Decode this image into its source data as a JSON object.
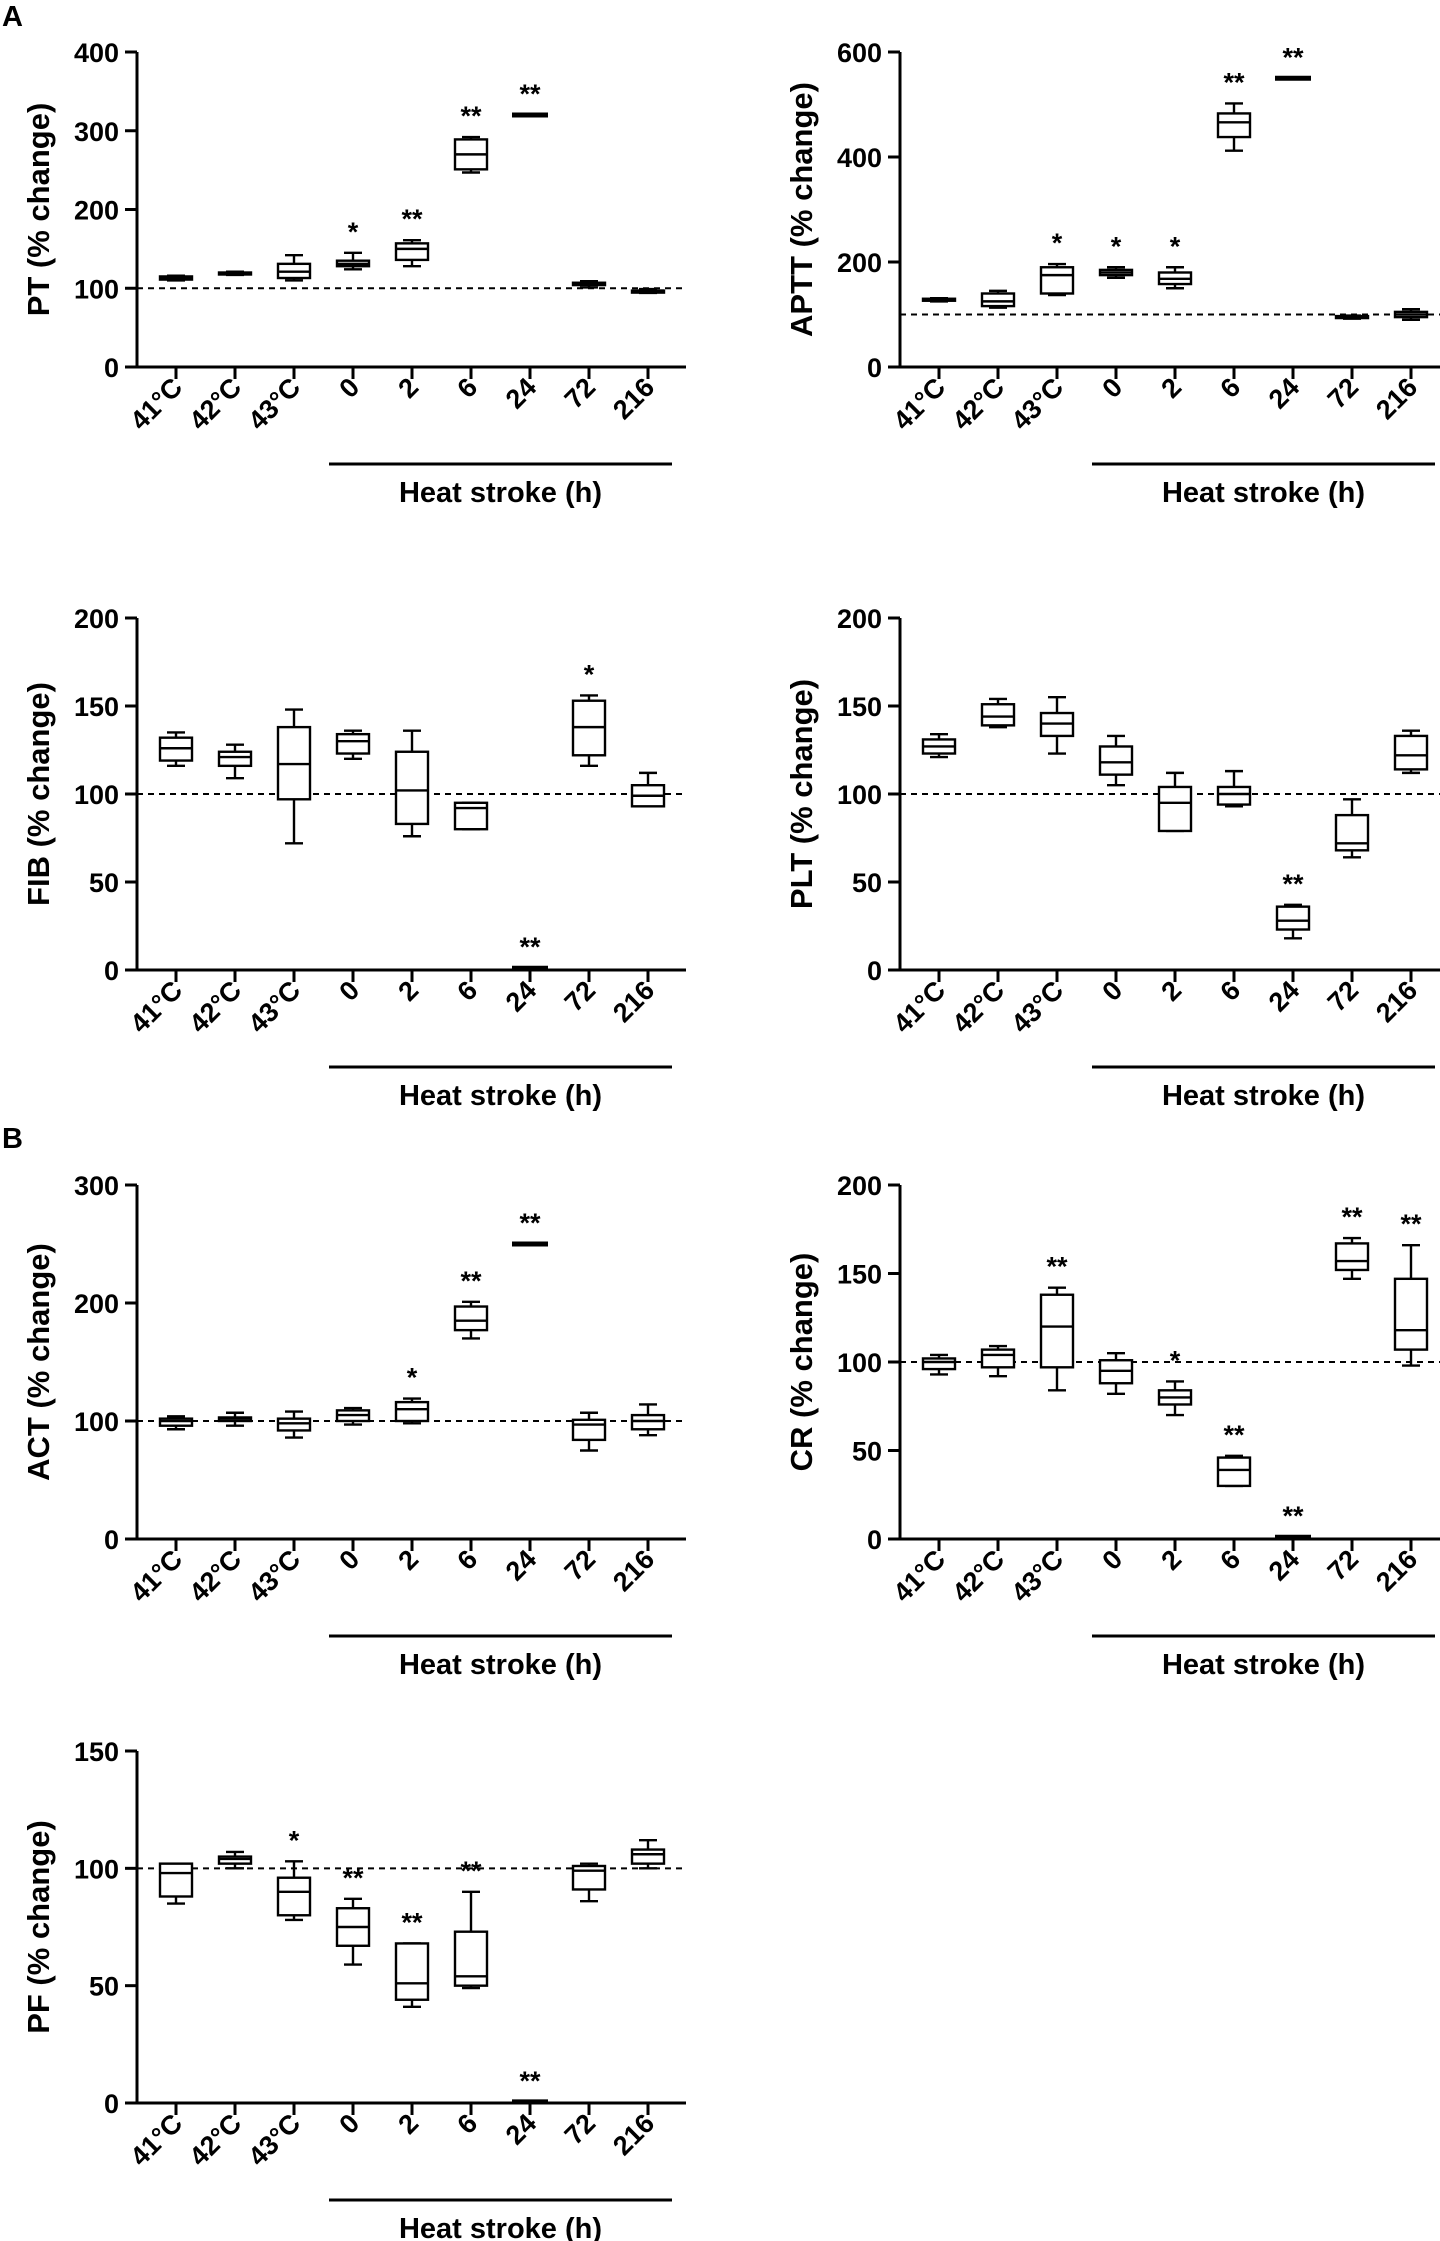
{
  "panels": [
    {
      "letter": "A"
    },
    {
      "letter": "B"
    }
  ],
  "chart_data": [
    {
      "type": "box",
      "panel": "A",
      "ylabel": "PT (% change)",
      "group_label": "Heat stroke (h)",
      "ylim": [
        0,
        400
      ],
      "yticks": [
        0,
        100,
        200,
        300,
        400
      ],
      "reference_line": 100,
      "categories": [
        "41°C",
        "42°C",
        "43°C",
        "0",
        "2",
        "6",
        "24",
        "72",
        "216"
      ],
      "boxes": [
        {
          "min": 110,
          "q1": 111,
          "median": 113,
          "q3": 115,
          "max": 116,
          "sig": ""
        },
        {
          "min": 117,
          "q1": 118,
          "median": 119,
          "q3": 120,
          "max": 121,
          "sig": ""
        },
        {
          "min": 110,
          "q1": 113,
          "median": 121,
          "q3": 131,
          "max": 142,
          "sig": ""
        },
        {
          "min": 124,
          "q1": 128,
          "median": 131,
          "q3": 135,
          "max": 145,
          "sig": "*"
        },
        {
          "min": 128,
          "q1": 136,
          "median": 150,
          "q3": 157,
          "max": 161,
          "sig": "**"
        },
        {
          "min": 247,
          "q1": 251,
          "median": 270,
          "q3": 289,
          "max": 292,
          "sig": "**"
        },
        {
          "min": 320,
          "q1": 320,
          "median": 320,
          "q3": 320,
          "max": 320,
          "sig": "**"
        },
        {
          "min": 101,
          "q1": 104,
          "median": 106,
          "q3": 107,
          "max": 109,
          "sig": ""
        },
        {
          "min": 94,
          "q1": 95,
          "median": 97,
          "q3": 97,
          "max": 99,
          "sig": ""
        }
      ]
    },
    {
      "type": "box",
      "panel": "A",
      "ylabel": "APTT (% change)",
      "group_label": "Heat stroke (h)",
      "ylim": [
        0,
        600
      ],
      "yticks": [
        0,
        200,
        400,
        600
      ],
      "reference_line": 100,
      "categories": [
        "41°C",
        "42°C",
        "43°C",
        "0",
        "2",
        "6",
        "24",
        "72",
        "216"
      ],
      "boxes": [
        {
          "min": 125,
          "q1": 127,
          "median": 128,
          "q3": 130,
          "max": 131,
          "sig": ""
        },
        {
          "min": 113,
          "q1": 116,
          "median": 125,
          "q3": 140,
          "max": 145,
          "sig": ""
        },
        {
          "min": 137,
          "q1": 140,
          "median": 175,
          "q3": 190,
          "max": 196,
          "sig": "*"
        },
        {
          "min": 170,
          "q1": 175,
          "median": 180,
          "q3": 185,
          "max": 190,
          "sig": "*"
        },
        {
          "min": 150,
          "q1": 158,
          "median": 168,
          "q3": 180,
          "max": 190,
          "sig": "*"
        },
        {
          "min": 412,
          "q1": 438,
          "median": 466,
          "q3": 483,
          "max": 502,
          "sig": "**"
        },
        {
          "min": 550,
          "q1": 550,
          "median": 550,
          "q3": 550,
          "max": 550,
          "sig": "**"
        },
        {
          "min": 92,
          "q1": 94,
          "median": 95,
          "q3": 97,
          "max": 98,
          "sig": ""
        },
        {
          "min": 90,
          "q1": 95,
          "median": 100,
          "q3": 105,
          "max": 110,
          "sig": ""
        }
      ]
    },
    {
      "type": "box",
      "panel": "A",
      "ylabel": "FIB (% change)",
      "group_label": "Heat stroke (h)",
      "ylim": [
        0,
        200
      ],
      "yticks": [
        0,
        50,
        100,
        150,
        200
      ],
      "reference_line": 100,
      "categories": [
        "41°C",
        "42°C",
        "43°C",
        "0",
        "2",
        "6",
        "24",
        "72",
        "216"
      ],
      "boxes": [
        {
          "min": 116,
          "q1": 119,
          "median": 126,
          "q3": 132,
          "max": 135,
          "sig": ""
        },
        {
          "min": 109,
          "q1": 116,
          "median": 121,
          "q3": 124,
          "max": 128,
          "sig": ""
        },
        {
          "min": 72,
          "q1": 97,
          "median": 117,
          "q3": 138,
          "max": 148,
          "sig": ""
        },
        {
          "min": 120,
          "q1": 123,
          "median": 130,
          "q3": 134,
          "max": 136,
          "sig": ""
        },
        {
          "min": 76,
          "q1": 83,
          "median": 102,
          "q3": 124,
          "max": 136,
          "sig": ""
        },
        {
          "min": 80,
          "q1": 80,
          "median": 92,
          "q3": 95,
          "max": 95,
          "sig": ""
        },
        {
          "min": 1,
          "q1": 1,
          "median": 1,
          "q3": 1,
          "max": 1,
          "sig": "**"
        },
        {
          "min": 116,
          "q1": 122,
          "median": 138,
          "q3": 153,
          "max": 156,
          "sig": "*"
        },
        {
          "min": 93,
          "q1": 93,
          "median": 99,
          "q3": 105,
          "max": 112,
          "sig": ""
        }
      ]
    },
    {
      "type": "box",
      "panel": "A",
      "ylabel": "PLT (% change)",
      "group_label": "Heat stroke (h)",
      "ylim": [
        0,
        200
      ],
      "yticks": [
        0,
        50,
        100,
        150,
        200
      ],
      "reference_line": 100,
      "categories": [
        "41°C",
        "42°C",
        "43°C",
        "0",
        "2",
        "6",
        "24",
        "72",
        "216"
      ],
      "boxes": [
        {
          "min": 121,
          "q1": 123,
          "median": 127,
          "q3": 131,
          "max": 134,
          "sig": ""
        },
        {
          "min": 138,
          "q1": 139,
          "median": 144,
          "q3": 151,
          "max": 154,
          "sig": ""
        },
        {
          "min": 123,
          "q1": 133,
          "median": 140,
          "q3": 146,
          "max": 155,
          "sig": ""
        },
        {
          "min": 105,
          "q1": 111,
          "median": 118,
          "q3": 127,
          "max": 133,
          "sig": ""
        },
        {
          "min": 79,
          "q1": 79,
          "median": 95,
          "q3": 104,
          "max": 112,
          "sig": ""
        },
        {
          "min": 93,
          "q1": 94,
          "median": 100,
          "q3": 104,
          "max": 113,
          "sig": ""
        },
        {
          "min": 18,
          "q1": 23,
          "median": 28,
          "q3": 36,
          "max": 37,
          "sig": "**"
        },
        {
          "min": 64,
          "q1": 68,
          "median": 72,
          "q3": 88,
          "max": 97,
          "sig": ""
        },
        {
          "min": 112,
          "q1": 114,
          "median": 122,
          "q3": 133,
          "max": 136,
          "sig": ""
        }
      ]
    },
    {
      "type": "box",
      "panel": "B",
      "ylabel": "ACT (% change)",
      "group_label": "Heat stroke (h)",
      "ylim": [
        0,
        300
      ],
      "yticks": [
        0,
        100,
        200,
        300
      ],
      "reference_line": 100,
      "categories": [
        "41°C",
        "42°C",
        "43°C",
        "0",
        "2",
        "6",
        "24",
        "72",
        "216"
      ],
      "boxes": [
        {
          "min": 93,
          "q1": 96,
          "median": 100,
          "q3": 102,
          "max": 104,
          "sig": ""
        },
        {
          "min": 96,
          "q1": 100,
          "median": 102,
          "q3": 103,
          "max": 107,
          "sig": ""
        },
        {
          "min": 86,
          "q1": 92,
          "median": 98,
          "q3": 102,
          "max": 108,
          "sig": ""
        },
        {
          "min": 97,
          "q1": 100,
          "median": 105,
          "q3": 109,
          "max": 111,
          "sig": ""
        },
        {
          "min": 98,
          "q1": 100,
          "median": 110,
          "q3": 116,
          "max": 119,
          "sig": "*"
        },
        {
          "min": 170,
          "q1": 177,
          "median": 185,
          "q3": 197,
          "max": 201,
          "sig": "**"
        },
        {
          "min": 250,
          "q1": 250,
          "median": 250,
          "q3": 250,
          "max": 250,
          "sig": "**"
        },
        {
          "min": 75,
          "q1": 84,
          "median": 97,
          "q3": 101,
          "max": 107,
          "sig": ""
        },
        {
          "min": 88,
          "q1": 93,
          "median": 100,
          "q3": 105,
          "max": 114,
          "sig": ""
        }
      ]
    },
    {
      "type": "box",
      "panel": "B",
      "ylabel": "CR (% change)",
      "group_label": "Heat stroke (h)",
      "ylim": [
        0,
        200
      ],
      "yticks": [
        0,
        50,
        100,
        150,
        200
      ],
      "reference_line": 100,
      "categories": [
        "41°C",
        "42°C",
        "43°C",
        "0",
        "2",
        "6",
        "24",
        "72",
        "216"
      ],
      "boxes": [
        {
          "min": 93,
          "q1": 96,
          "median": 100,
          "q3": 102,
          "max": 104,
          "sig": ""
        },
        {
          "min": 92,
          "q1": 97,
          "median": 104,
          "q3": 107,
          "max": 109,
          "sig": ""
        },
        {
          "min": 84,
          "q1": 97,
          "median": 120,
          "q3": 138,
          "max": 142,
          "sig": "**"
        },
        {
          "min": 82,
          "q1": 88,
          "median": 95,
          "q3": 101,
          "max": 105,
          "sig": ""
        },
        {
          "min": 70,
          "q1": 76,
          "median": 80,
          "q3": 84,
          "max": 89,
          "sig": "*"
        },
        {
          "min": 30,
          "q1": 30,
          "median": 39,
          "q3": 46,
          "max": 47,
          "sig": "**"
        },
        {
          "min": 1,
          "q1": 1,
          "median": 1,
          "q3": 1,
          "max": 1,
          "sig": "**"
        },
        {
          "min": 147,
          "q1": 152,
          "median": 157,
          "q3": 167,
          "max": 170,
          "sig": "**"
        },
        {
          "min": 98,
          "q1": 107,
          "median": 118,
          "q3": 147,
          "max": 166,
          "sig": "**"
        }
      ]
    },
    {
      "type": "box",
      "panel": "B",
      "ylabel": "PF (% change)",
      "group_label": "Heat stroke (h)",
      "ylim": [
        0,
        150
      ],
      "yticks": [
        0,
        50,
        100,
        150
      ],
      "reference_line": 100,
      "categories": [
        "41°C",
        "42°C",
        "43°C",
        "0",
        "2",
        "6",
        "24",
        "72",
        "216"
      ],
      "boxes": [
        {
          "min": 85,
          "q1": 88,
          "median": 98,
          "q3": 102,
          "max": 102,
          "sig": ""
        },
        {
          "min": 100,
          "q1": 102,
          "median": 104,
          "q3": 105,
          "max": 107,
          "sig": ""
        },
        {
          "min": 78,
          "q1": 80,
          "median": 90,
          "q3": 96,
          "max": 103,
          "sig": "*"
        },
        {
          "min": 59,
          "q1": 67,
          "median": 75,
          "q3": 83,
          "max": 87,
          "sig": "**"
        },
        {
          "min": 41,
          "q1": 44,
          "median": 51,
          "q3": 68,
          "max": 68,
          "sig": "**"
        },
        {
          "min": 49,
          "q1": 50,
          "median": 54,
          "q3": 73,
          "max": 90,
          "sig": "**"
        },
        {
          "min": 0.5,
          "q1": 0.5,
          "median": 0.5,
          "q3": 0.5,
          "max": 0.5,
          "sig": "**"
        },
        {
          "min": 86,
          "q1": 91,
          "median": 99,
          "q3": 101,
          "max": 102,
          "sig": ""
        },
        {
          "min": 100,
          "q1": 102,
          "median": 106,
          "q3": 108,
          "max": 112,
          "sig": ""
        }
      ]
    }
  ]
}
